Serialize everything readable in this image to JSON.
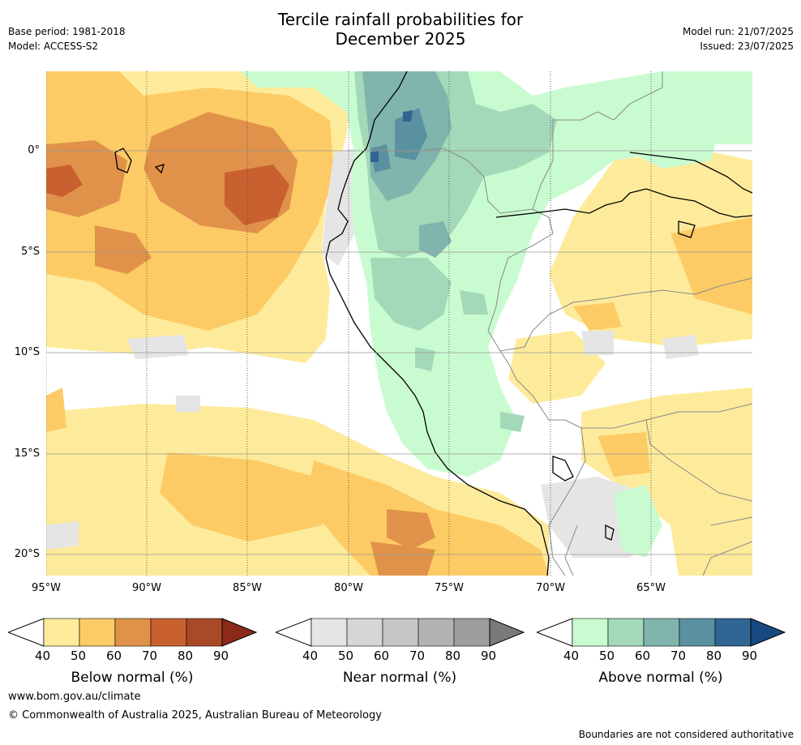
{
  "header": {
    "title_line1": "Tercile rainfall probabilities for",
    "title_line2": "December 2025",
    "base_period": "Base period: 1981-2018",
    "model": "Model: ACCESS-S2",
    "model_run": "Model run: 21/07/2025",
    "issued": "Issued: 23/07/2025"
  },
  "map": {
    "lat_labels": [
      "0°",
      "5°S",
      "10°S",
      "15°S",
      "20°S"
    ],
    "lon_labels": [
      "95°W",
      "90°W",
      "85°W",
      "80°W",
      "75°W",
      "70°W",
      "65°W"
    ],
    "lon_extent": [
      -95,
      -60
    ],
    "lat_extent": [
      -21,
      4
    ],
    "colors": {
      "ocean_land_bg": "#ffffff",
      "coast": "#000000",
      "border": "#888888",
      "grid": "#999999"
    }
  },
  "colorbars": [
    {
      "label": "Below normal (%)",
      "ticks": [
        "40",
        "50",
        "60",
        "70",
        "80",
        "90"
      ],
      "colors": [
        "#fdeb9b",
        "#fdcb65",
        "#e0924a",
        "#c8612f",
        "#a84a26",
        "#8b2a1a"
      ]
    },
    {
      "label": "Near normal (%)",
      "ticks": [
        "40",
        "50",
        "60",
        "70",
        "80",
        "90"
      ],
      "colors": [
        "#e5e5e5",
        "#d6d6d6",
        "#c6c6c6",
        "#b2b2b2",
        "#9e9e9e",
        "#7a7a7a"
      ]
    },
    {
      "label": "Above normal (%)",
      "ticks": [
        "40",
        "50",
        "60",
        "70",
        "80",
        "90"
      ],
      "colors": [
        "#c9fbd0",
        "#a3d8b8",
        "#80b5ae",
        "#5a91a0",
        "#306593",
        "#174a80"
      ]
    }
  ],
  "footer": {
    "url": "www.bom.gov.au/climate",
    "copyright": "© Commonwealth of Australia 2025, Australian Bureau of Meteorology",
    "disclaimer": "Boundaries are not considered authoritative"
  }
}
